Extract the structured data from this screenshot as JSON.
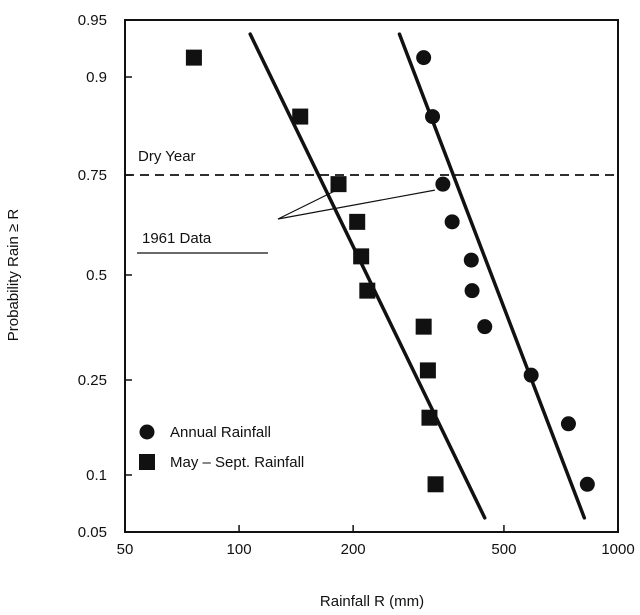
{
  "chart_data": {
    "type": "scatter",
    "xlabel": "Rainfall R (mm)",
    "ylabel": "Probability Rain ≥ R",
    "x_scale": "log",
    "y_scale": "probability",
    "xlim": [
      50,
      1000
    ],
    "ylim": [
      0.05,
      0.95
    ],
    "x_ticks": [
      50,
      100,
      200,
      500,
      1000
    ],
    "x_tick_labels": [
      "50",
      "100",
      "200",
      "500",
      "1000"
    ],
    "y_ticks": [
      0.05,
      0.1,
      0.25,
      0.5,
      0.75,
      0.9,
      0.95
    ],
    "y_tick_labels": [
      "0.05",
      "0.1",
      "0.25",
      "0.5",
      "0.75",
      "0.9",
      "0.95"
    ],
    "grid": false,
    "legend_position": "lower-left",
    "series": [
      {
        "name": "Annual Rainfall",
        "marker": "circle",
        "points": [
          {
            "x": 307,
            "y": 0.92
          },
          {
            "x": 324,
            "y": 0.85
          },
          {
            "x": 345,
            "y": 0.73
          },
          {
            "x": 365,
            "y": 0.64
          },
          {
            "x": 410,
            "y": 0.54
          },
          {
            "x": 412,
            "y": 0.46
          },
          {
            "x": 445,
            "y": 0.37
          },
          {
            "x": 590,
            "y": 0.26
          },
          {
            "x": 740,
            "y": 0.17
          },
          {
            "x": 830,
            "y": 0.09
          }
        ],
        "fit_line": [
          {
            "x": 265,
            "y": 0.94
          },
          {
            "x": 815,
            "y": 0.06
          }
        ]
      },
      {
        "name": "May – Sept. Rainfall",
        "marker": "square",
        "points": [
          {
            "x": 76,
            "y": 0.92
          },
          {
            "x": 145,
            "y": 0.85
          },
          {
            "x": 183,
            "y": 0.73
          },
          {
            "x": 205,
            "y": 0.64
          },
          {
            "x": 210,
            "y": 0.55
          },
          {
            "x": 218,
            "y": 0.46
          },
          {
            "x": 307,
            "y": 0.37
          },
          {
            "x": 315,
            "y": 0.27
          },
          {
            "x": 318,
            "y": 0.18
          },
          {
            "x": 330,
            "y": 0.09
          }
        ],
        "fit_line": [
          {
            "x": 107,
            "y": 0.94
          },
          {
            "x": 445,
            "y": 0.06
          }
        ]
      }
    ],
    "reference_lines": [
      {
        "orientation": "horizontal",
        "y": 0.75,
        "style": "dashed",
        "label": "Dry Year"
      }
    ],
    "annotations": [
      {
        "text": "1961 Data",
        "points_to": [
          {
            "x": 183,
            "y": 0.73
          },
          {
            "x": 345,
            "y": 0.73
          }
        ]
      }
    ]
  },
  "colors": {
    "ink": "#111111",
    "background": "#ffffff"
  }
}
